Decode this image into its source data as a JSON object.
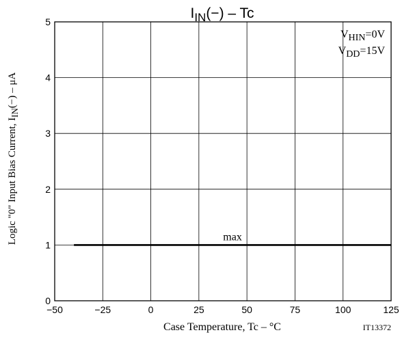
{
  "chart_data": {
    "type": "line",
    "title": {
      "base": "I",
      "sub": "IN",
      "rest": "(−)   –  Tc"
    },
    "xlabel": "Case Temperature, Tc  –   °C",
    "ylabel": {
      "pre": "Logic \"0\" Input Bias Current, I",
      "sub": "IN",
      "post": "(−)  –   μA"
    },
    "xlim": [
      -50,
      125
    ],
    "ylim": [
      0,
      5
    ],
    "xticks": [
      -50,
      -25,
      0,
      25,
      50,
      75,
      100,
      125
    ],
    "xtick_labels": [
      "−50",
      "−25",
      "0",
      "25",
      "50",
      "75",
      "100",
      "125"
    ],
    "yticks": [
      0,
      1,
      2,
      3,
      4,
      5
    ],
    "ytick_labels": [
      "0",
      "1",
      "2",
      "3",
      "4",
      "5"
    ],
    "grid": true,
    "conditions": [
      {
        "base": "V",
        "sub": "HIN",
        "rest": "=0V"
      },
      {
        "base": "V",
        "sub": "DD",
        "rest": "=15V"
      }
    ],
    "series": [
      {
        "name": "max",
        "x": [
          -40,
          125
        ],
        "y": [
          1,
          1
        ]
      }
    ],
    "figure_code": "IT13372"
  }
}
